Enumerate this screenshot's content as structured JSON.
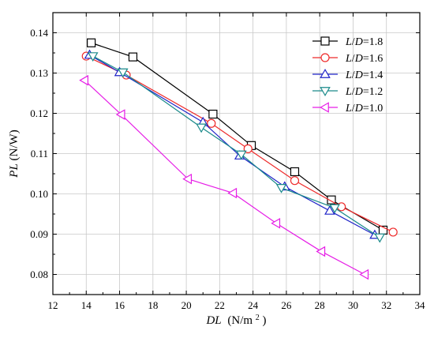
{
  "chart_data": {
    "type": "line",
    "xlabel_main": "DL",
    "xlabel_unit": "(N/m",
    "xlabel_sup": "2",
    "xlabel_close": ")",
    "ylabel_main": "PL",
    "ylabel_unit": " (N/W)",
    "xlim": [
      12,
      34
    ],
    "ylim": [
      0.075,
      0.145
    ],
    "xticks": [
      12,
      14,
      16,
      18,
      20,
      22,
      24,
      26,
      28,
      30,
      32,
      34
    ],
    "yticks": [
      0.08,
      0.09,
      0.1,
      0.11,
      0.12,
      0.13,
      0.14
    ],
    "yticks_text": [
      "0.08",
      "0.09",
      "0.10",
      "0.11",
      "0.12",
      "0.13",
      "0.14"
    ],
    "grid": true,
    "legend_position": "top-right",
    "legend_prefix": "L",
    "legend_mid": "/",
    "legend_d": "D",
    "series": [
      {
        "name": "=1.8",
        "color": "#000000",
        "marker": "square",
        "x": [
          14.3,
          16.8,
          21.6,
          23.9,
          26.5,
          28.7,
          31.8
        ],
        "y": [
          0.1375,
          0.134,
          0.1198,
          0.112,
          0.1055,
          0.0985,
          0.091
        ]
      },
      {
        "name": "=1.6",
        "color": "#ee2a2a",
        "marker": "circle",
        "x": [
          14.0,
          16.4,
          21.5,
          23.7,
          26.5,
          29.3,
          32.4
        ],
        "y": [
          0.1342,
          0.1295,
          0.1175,
          0.1112,
          0.1033,
          0.0968,
          0.0905
        ]
      },
      {
        "name": "=1.4",
        "color": "#1f23c8",
        "marker": "triangle-up",
        "x": [
          14.2,
          16.0,
          21.0,
          23.2,
          25.9,
          28.6,
          31.3
        ],
        "y": [
          0.1345,
          0.1302,
          0.1178,
          0.1095,
          0.1018,
          0.0958,
          0.0898
        ]
      },
      {
        "name": "=1.2",
        "color": "#1a8a8a",
        "marker": "triangle-down",
        "x": [
          14.4,
          16.2,
          20.9,
          23.3,
          25.7,
          28.9,
          31.6
        ],
        "y": [
          0.1342,
          0.1302,
          0.1165,
          0.1098,
          0.1015,
          0.0965,
          0.0892
        ]
      },
      {
        "name": "=1.0",
        "color": "#e61ee6",
        "marker": "triangle-left",
        "x": [
          13.9,
          16.1,
          20.1,
          22.8,
          25.4,
          28.1,
          30.7
        ],
        "y": [
          0.1282,
          0.1197,
          0.1037,
          0.1002,
          0.0927,
          0.0857,
          0.08
        ]
      }
    ]
  }
}
